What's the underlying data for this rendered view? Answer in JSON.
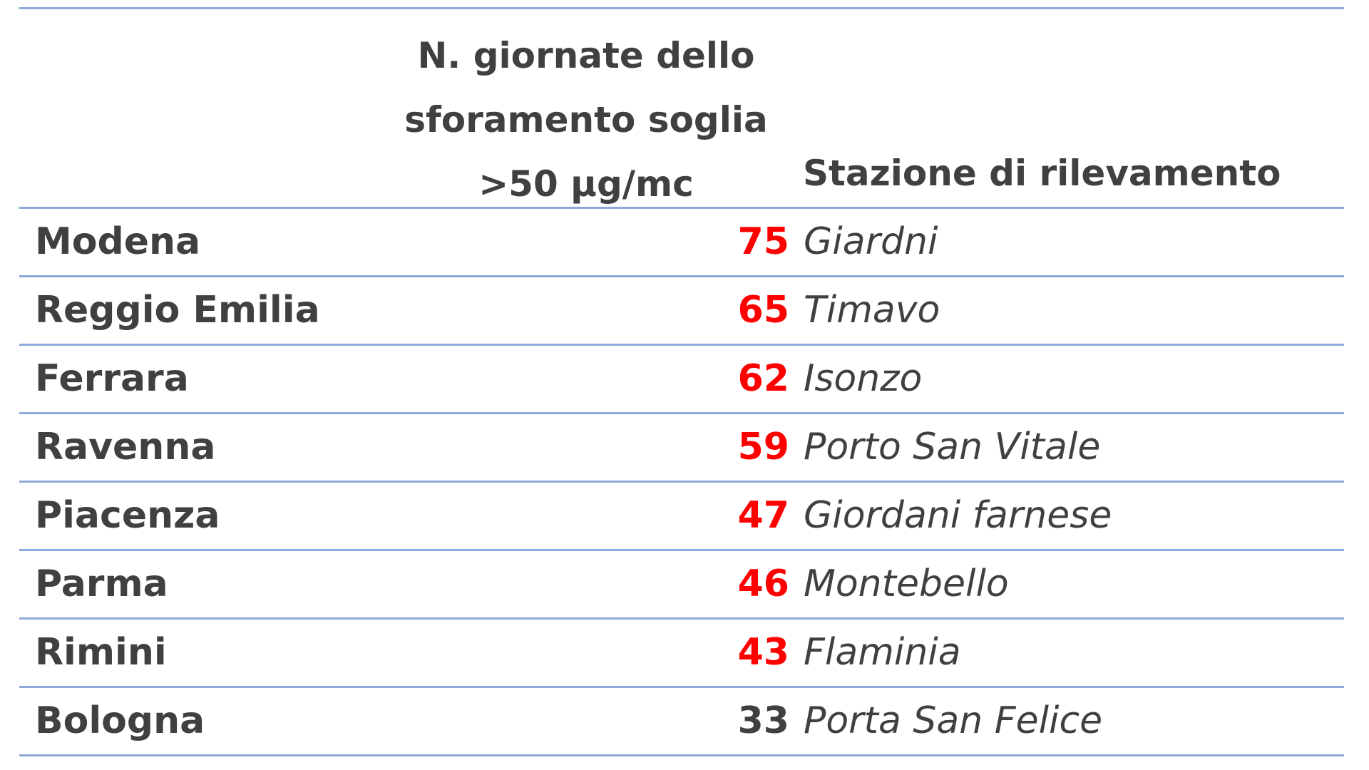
{
  "header": {
    "count_line1": "N. giornate dello",
    "count_line2": "sforamento soglia",
    "count_line3": ">50 µg/mc",
    "station": "Stazione di rilevamento"
  },
  "colors": {
    "highlight": "#ff0000",
    "normal": "#404040",
    "rule": "#8ea9db"
  },
  "rows": [
    {
      "city": "Modena",
      "count": "75",
      "station": "Giardni",
      "highlight": true
    },
    {
      "city": "Reggio Emilia",
      "count": "65",
      "station": "Timavo",
      "highlight": true
    },
    {
      "city": "Ferrara",
      "count": "62",
      "station": "Isonzo",
      "highlight": true
    },
    {
      "city": "Ravenna",
      "count": "59",
      "station": "Porto San Vitale",
      "highlight": true
    },
    {
      "city": "Piacenza",
      "count": "47",
      "station": "Giordani farnese",
      "highlight": true
    },
    {
      "city": "Parma",
      "count": "46",
      "station": "Montebello",
      "highlight": true
    },
    {
      "city": "Rimini",
      "count": "43",
      "station": "Flaminia",
      "highlight": true
    },
    {
      "city": "Bologna",
      "count": "33",
      "station": "Porta San Felice",
      "highlight": false
    }
  ]
}
